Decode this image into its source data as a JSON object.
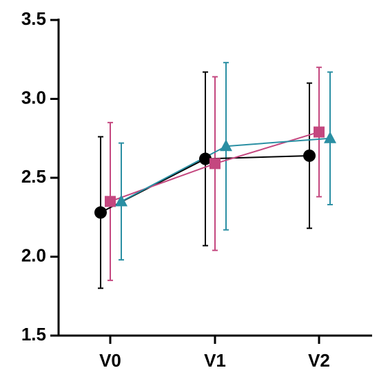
{
  "chart_data": {
    "type": "line",
    "categories": [
      "V0",
      "V1",
      "V2"
    ],
    "series": [
      {
        "color": "#000000",
        "marker": "circle",
        "values": [
          2.28,
          2.62,
          2.64
        ],
        "errors": [
          0.48,
          0.55,
          0.46
        ]
      },
      {
        "color": "#c4477f",
        "marker": "square",
        "values": [
          2.35,
          2.59,
          2.79
        ],
        "errors": [
          0.5,
          0.55,
          0.41
        ]
      },
      {
        "color": "#2a8fa3",
        "marker": "triangle",
        "values": [
          2.35,
          2.7,
          2.75
        ],
        "errors": [
          0.37,
          0.53,
          0.42
        ]
      }
    ],
    "ylim": [
      1.5,
      3.5
    ],
    "yticks": [
      1.5,
      {
        "value": 2,
        "label": "2.0"
      },
      2.5,
      {
        "value": 3,
        "label": "3.0"
      },
      3.5
    ]
  }
}
